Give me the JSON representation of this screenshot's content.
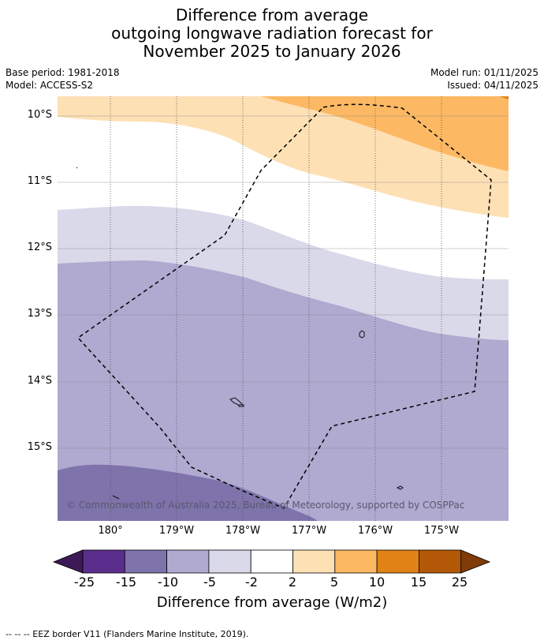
{
  "title": {
    "line1": "Difference from average",
    "line2": "outgoing longwave radiation forecast for",
    "line3": "November 2025 to January 2026"
  },
  "meta": {
    "base_period": "Base period: 1981-2018",
    "model": "Model: ACCESS-S2",
    "model_run": "Model run: 01/11/2025",
    "issued": "Issued: 04/11/2025"
  },
  "map": {
    "lat_labels": [
      "10°S",
      "11°S",
      "12°S",
      "13°S",
      "14°S",
      "15°S"
    ],
    "lon_labels": [
      "180°",
      "179°W",
      "178°W",
      "177°W",
      "176°W",
      "175°W"
    ],
    "copyright": "© Commonwealth of Australia 2025, Bureau of Meteorology, supported by COSPPac"
  },
  "colorbar": {
    "tick_labels": [
      "-25",
      "-15",
      "-10",
      "-5",
      "-2",
      "2",
      "5",
      "10",
      "15",
      "25"
    ],
    "colors": {
      "lt_-25": "#3d1a55",
      "-25_-15": "#5b2d8c",
      "-15_-10": "#7e73ab",
      "-10_-5": "#b0a9d0",
      "-5_-2": "#d9d9ea",
      "-2_2": "#ffffff",
      "2_5": "#fde0b4",
      "5_10": "#fdb863",
      "10_15": "#e08214",
      "15_25": "#b35806",
      "gt_25": "#7f3b08"
    },
    "title": "Difference from average (W/m2)"
  },
  "footer": "--  --  -- EEZ border V11 (Flanders Marine Institute, 2019)."
}
